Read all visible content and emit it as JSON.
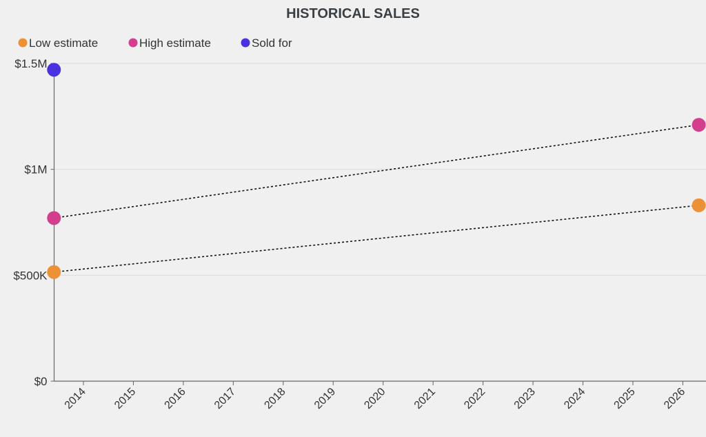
{
  "chart_data": {
    "type": "scatter",
    "title": "HISTORICAL SALES",
    "xlabel": "",
    "ylabel": "",
    "ylim": [
      0,
      1500000
    ],
    "xlim": [
      2013.41,
      2026.32
    ],
    "grid": true,
    "legend_position": "top-left",
    "y_ticks": [
      {
        "value": 0,
        "label": "$0"
      },
      {
        "value": 500000,
        "label": "$500K"
      },
      {
        "value": 1000000,
        "label": "$1M"
      },
      {
        "value": 1500000,
        "label": "$1.5M"
      }
    ],
    "x_ticks": [
      "2014",
      "2015",
      "2016",
      "2017",
      "2018",
      "2019",
      "2020",
      "2021",
      "2022",
      "2023",
      "2024",
      "2025",
      "2026"
    ],
    "series": [
      {
        "name": "Low estimate",
        "color": "#ec9136",
        "points": [
          {
            "x": 2013.41,
            "y": 515000
          },
          {
            "x": 2026.32,
            "y": 830000
          }
        ],
        "trend_line": "dotted"
      },
      {
        "name": "High estimate",
        "color": "#d43f8d",
        "points": [
          {
            "x": 2013.41,
            "y": 770000
          },
          {
            "x": 2026.32,
            "y": 1210000
          }
        ],
        "trend_line": "dotted"
      },
      {
        "name": "Sold for",
        "color": "#4b32e0",
        "points": [
          {
            "x": 2013.41,
            "y": 1470000
          }
        ]
      }
    ]
  }
}
